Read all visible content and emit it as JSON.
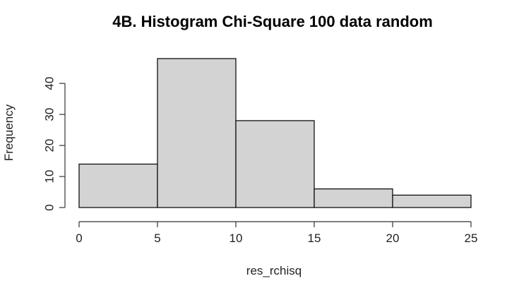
{
  "chart_data": {
    "type": "bar",
    "title": "4B. Histogram Chi-Square 100 data random",
    "xlabel": "res_rchisq",
    "ylabel": "Frequency",
    "bins": [
      {
        "from": 0,
        "to": 5,
        "count": 14
      },
      {
        "from": 5,
        "to": 10,
        "count": 48
      },
      {
        "from": 10,
        "to": 15,
        "count": 28
      },
      {
        "from": 15,
        "to": 20,
        "count": 6
      },
      {
        "from": 20,
        "to": 25,
        "count": 4
      }
    ],
    "xlim": [
      0,
      25
    ],
    "ylim": [
      0,
      48
    ],
    "x_ticks": [
      "0",
      "5",
      "10",
      "15",
      "20",
      "25"
    ],
    "y_ticks": [
      "0",
      "10",
      "20",
      "30",
      "40"
    ],
    "grid": false,
    "bar_color": "#d3d3d3"
  }
}
